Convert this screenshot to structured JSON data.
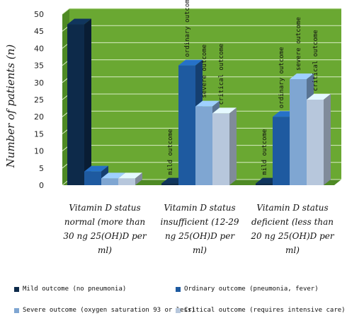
{
  "chart_data": {
    "type": "bar",
    "ylabel": "Number of patients (n)",
    "ylim": [
      0,
      50
    ],
    "yticks": [
      0,
      5,
      10,
      15,
      20,
      25,
      30,
      35,
      40,
      45,
      50
    ],
    "grid": true,
    "legend_position": "bottom",
    "categories": [
      "Vitamin D status normal (more than 30 ng 25(OH)D per ml)",
      "Vitamin D status insufficient (12-29 ng 25(OH)D per ml)",
      "Vitamin D status deficient (less than 20 ng 25(OH)D per ml)"
    ],
    "series": [
      {
        "name": "Mild outcome (no pneumonia)",
        "values": [
          47,
          0.5,
          0.5
        ],
        "color": "#0d2a4a"
      },
      {
        "name": "Ordinary outcome (pneumonia, fever)",
        "values": [
          4,
          35,
          20
        ],
        "color": "#1e5aa0"
      },
      {
        "name": "Severe outcome (oxygen saturation 93 or less)",
        "values": [
          2,
          23,
          31
        ],
        "color": "#7fa6d2"
      },
      {
        "name": "Critical outcome (requires intensive care)",
        "values": [
          2,
          21,
          25
        ],
        "color": "#b7c7dc"
      }
    ],
    "bar_labels": [
      {
        "category": 1,
        "series": 0,
        "text": "mild outcome"
      },
      {
        "category": 1,
        "series": 1,
        "text": "ordinary outcome"
      },
      {
        "category": 1,
        "series": 2,
        "text": "severe outcome"
      },
      {
        "category": 1,
        "series": 3,
        "text": "critical outcome"
      },
      {
        "category": 2,
        "series": 0,
        "text": "mild outcome"
      },
      {
        "category": 2,
        "series": 1,
        "text": "ordinary outcome"
      },
      {
        "category": 2,
        "series": 2,
        "text": "severe outcome"
      },
      {
        "category": 2,
        "series": 3,
        "text": "critical outcome"
      }
    ],
    "background_color": "#6aa832",
    "floor_color": "#4e8a24"
  }
}
